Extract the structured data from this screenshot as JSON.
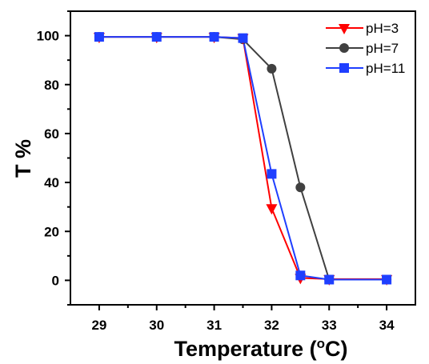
{
  "chart_data": {
    "type": "line",
    "xlabel": "Temperature (",
    "xlabel_sup": "o",
    "xlabel_unit": "C)",
    "ylabel": "T %",
    "x": [
      29,
      30,
      31,
      31.5,
      32,
      32.5,
      33,
      34
    ],
    "xticks": [
      29,
      30,
      31,
      32,
      33,
      34
    ],
    "yticks": [
      0,
      20,
      40,
      60,
      80,
      100
    ],
    "xlim": [
      28.5,
      34.5
    ],
    "ylim": [
      -10,
      110
    ],
    "legend_position": "top-right",
    "series": [
      {
        "name": "pH=3",
        "color": "#ff0000",
        "marker": "triangle-down",
        "values": [
          99.5,
          99.5,
          99.5,
          99,
          29.5,
          1,
          0.5,
          0.5
        ]
      },
      {
        "name": "pH=7",
        "color": "#404040",
        "marker": "circle",
        "values": [
          99.5,
          99.5,
          99.5,
          98.5,
          86.5,
          38,
          0.3,
          0.3
        ]
      },
      {
        "name": "pH=11",
        "color": "#1f3fff",
        "marker": "square",
        "values": [
          99.5,
          99.5,
          99.5,
          99,
          43.5,
          2,
          0.3,
          0.3
        ]
      }
    ]
  }
}
